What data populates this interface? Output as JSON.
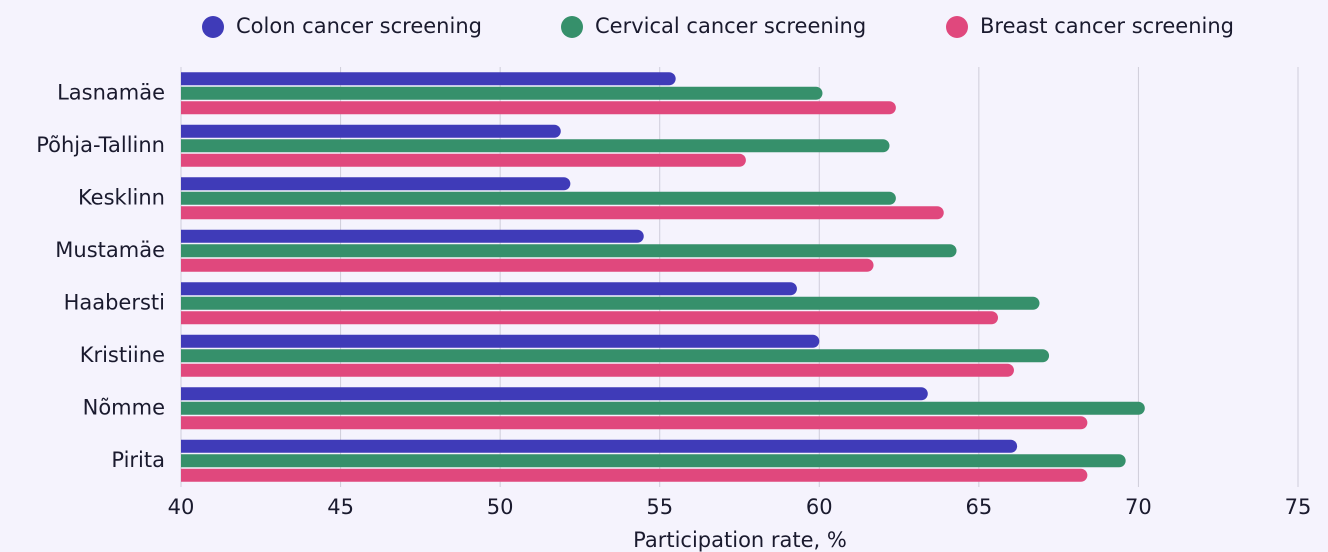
{
  "chart_data": {
    "type": "barh",
    "categories": [
      "Lasnamäe",
      "Põhja-Tallinn",
      "Kesklinn",
      "Mustamäe",
      "Haabersti",
      "Kristiine",
      "Nõmme",
      "Pirita"
    ],
    "series": [
      {
        "name": "Colon cancer screening",
        "color": "#3f3bb8",
        "values": [
          55.5,
          51.9,
          52.2,
          54.5,
          59.3,
          60.0,
          63.4,
          66.2
        ]
      },
      {
        "name": "Cervical cancer screening",
        "color": "#36906b",
        "values": [
          60.1,
          62.2,
          62.4,
          64.3,
          66.9,
          67.2,
          70.2,
          69.6
        ]
      },
      {
        "name": "Breast cancer screening",
        "color": "#e0487d",
        "values": [
          62.4,
          57.7,
          63.9,
          61.7,
          65.6,
          66.1,
          68.4,
          68.4
        ]
      }
    ],
    "xlabel": "Participation rate, %",
    "xlim": [
      40,
      75
    ],
    "xticks": [
      40,
      45,
      50,
      55,
      60,
      65,
      70,
      75
    ],
    "grid": true,
    "legend": "top"
  }
}
